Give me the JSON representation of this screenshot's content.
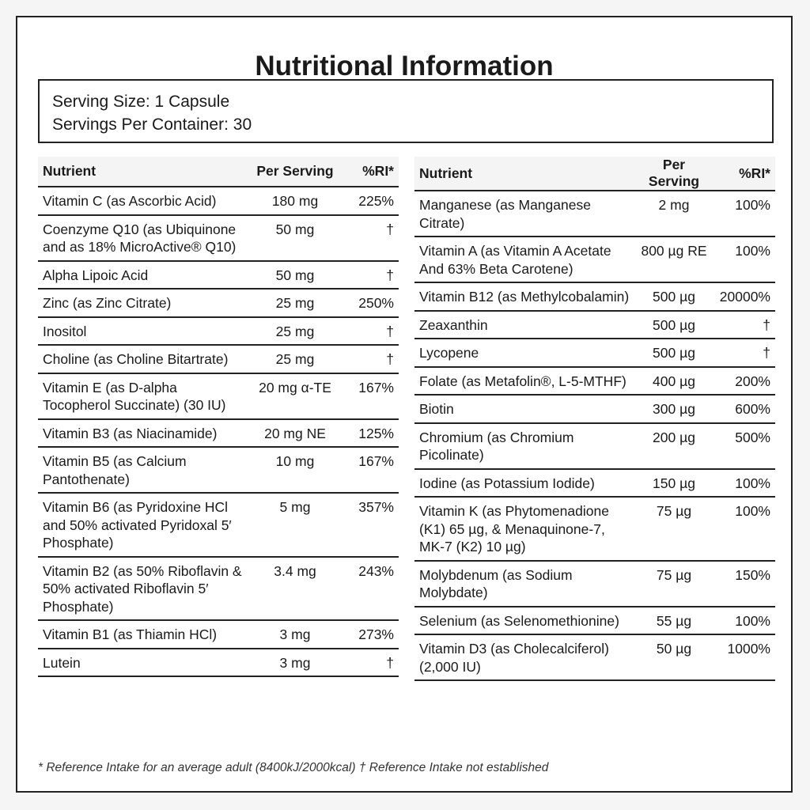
{
  "title": "Nutritional Information",
  "serving": {
    "size": "Serving Size: 1 Capsule",
    "per_container": "Servings Per Container: 30"
  },
  "headers": {
    "nutrient": "Nutrient",
    "per_serving": "Per Serving",
    "ri": "%RI*"
  },
  "left_rows": [
    {
      "nutrient": "Vitamin C (as Ascorbic Acid)",
      "amount": "180 mg",
      "ri": "225%"
    },
    {
      "nutrient": "Coenzyme Q10 (as Ubiquinone and as 18% MicroActive® Q10)",
      "amount": "50 mg",
      "ri": "†"
    },
    {
      "nutrient": "Alpha Lipoic Acid",
      "amount": "50 mg",
      "ri": "†"
    },
    {
      "nutrient": "Zinc (as Zinc Citrate)",
      "amount": "25 mg",
      "ri": "250%"
    },
    {
      "nutrient": "Inositol",
      "amount": "25 mg",
      "ri": "†"
    },
    {
      "nutrient": "Choline (as Choline Bitartrate)",
      "amount": "25 mg",
      "ri": "†"
    },
    {
      "nutrient": "Vitamin E (as D-alpha Tocopherol Succinate) (30 IU)",
      "amount": "20 mg α-TE",
      "ri": "167%"
    },
    {
      "nutrient": "Vitamin B3 (as Niacinamide)",
      "amount": "20 mg NE",
      "ri": "125%"
    },
    {
      "nutrient": "Vitamin B5 (as Calcium Pantothenate)",
      "amount": "10 mg",
      "ri": "167%"
    },
    {
      "nutrient": "Vitamin B6 (as Pyridoxine HCl and 50% activated Pyridoxal 5′ Phosphate)",
      "amount": "5 mg",
      "ri": "357%"
    },
    {
      "nutrient": "Vitamin B2 (as 50% Riboflavin & 50% activated Riboflavin 5′ Phosphate)",
      "amount": "3.4 mg",
      "ri": "243%"
    },
    {
      "nutrient": "Vitamin B1 (as Thiamin HCl)",
      "amount": "3 mg",
      "ri": "273%"
    },
    {
      "nutrient": "Lutein",
      "amount": "3 mg",
      "ri": "†"
    }
  ],
  "right_rows": [
    {
      "nutrient": "Manganese (as Manganese Citrate)",
      "amount": "2 mg",
      "ri": "100%"
    },
    {
      "nutrient": "Vitamin A (as Vitamin A Acetate And 63% Beta Carotene)",
      "amount": "800 µg RE",
      "ri": "100%"
    },
    {
      "nutrient": "Vitamin B12 (as Methylcobalamin)",
      "amount": "500 µg",
      "ri": "20000%"
    },
    {
      "nutrient": "Zeaxanthin",
      "amount": "500 µg",
      "ri": "†"
    },
    {
      "nutrient": "Lycopene",
      "amount": "500 µg",
      "ri": "†"
    },
    {
      "nutrient": "Folate (as Metafolin®, L-5-MTHF)",
      "amount": "400 µg",
      "ri": "200%"
    },
    {
      "nutrient": "Biotin",
      "amount": "300 µg",
      "ri": "600%"
    },
    {
      "nutrient": "Chromium (as Chromium Picolinate)",
      "amount": "200 µg",
      "ri": "500%"
    },
    {
      "nutrient": "Iodine (as Potassium Iodide)",
      "amount": "150 µg",
      "ri": "100%"
    },
    {
      "nutrient": "Vitamin K (as Phytomenadione (K1) 65 µg, & Menaquinone-7, MK-7 (K2) 10 µg)",
      "amount": "75 µg",
      "ri": "100%"
    },
    {
      "nutrient": "Molybdenum (as Sodium Molybdate)",
      "amount": "75 µg",
      "ri": "150%"
    },
    {
      "nutrient": "Selenium (as Selenomethionine)",
      "amount": "55 µg",
      "ri": "100%"
    },
    {
      "nutrient": "Vitamin D3 (as Cholecalciferol) (2,000 IU)",
      "amount": "50 µg",
      "ri": "1000%"
    }
  ],
  "footnote": "* Reference Intake for an average adult (8400kJ/2000kcal) † Reference Intake not established"
}
